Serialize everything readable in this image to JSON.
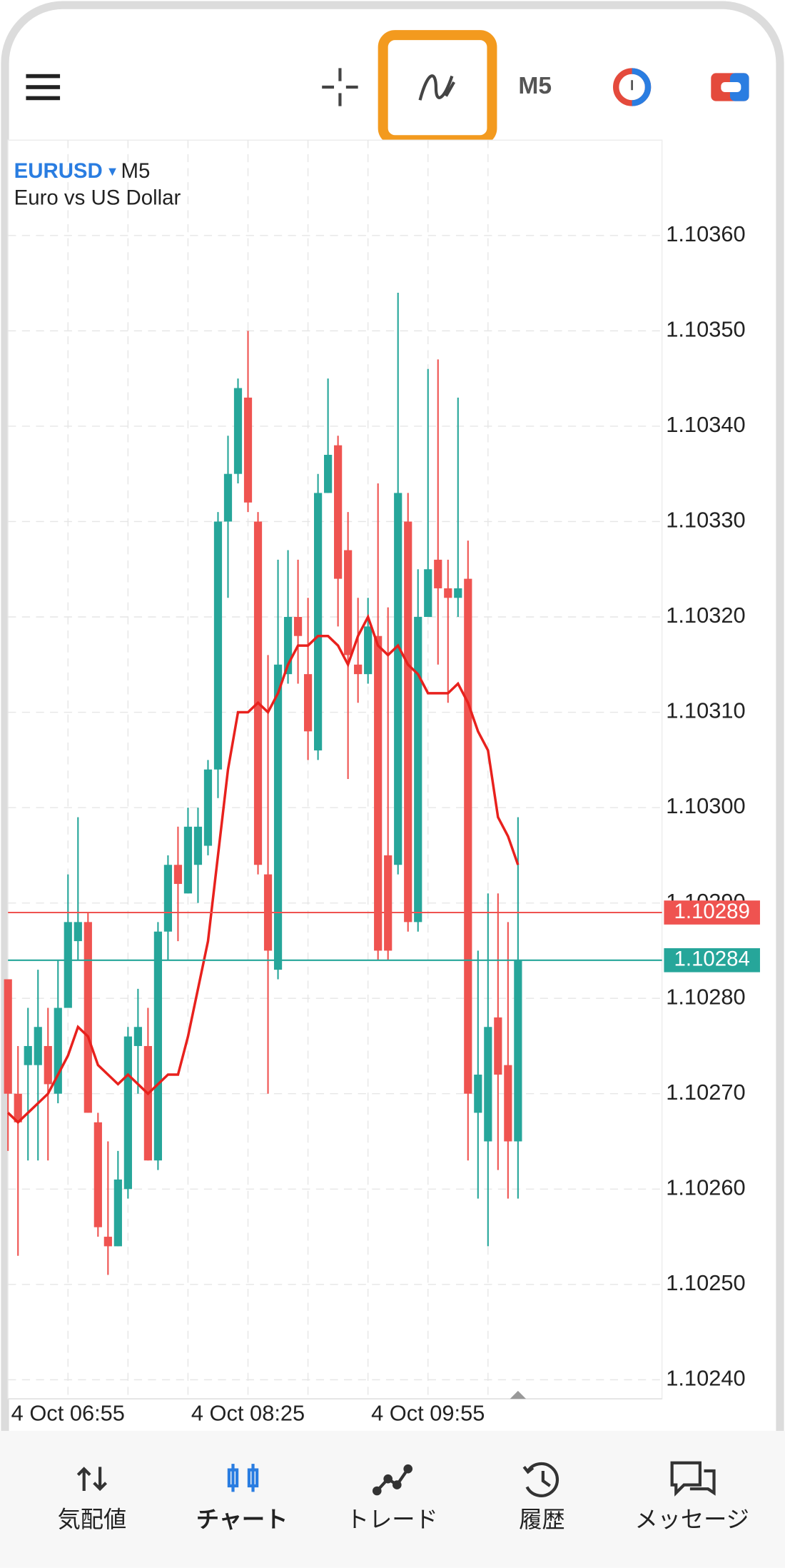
{
  "toolbar": {
    "timeframe": "M5"
  },
  "chart_data": {
    "type": "candlestick",
    "symbol": "EURUSD",
    "timeframe": "M5",
    "description": "Euro vs US Dollar",
    "categories": [
      null,
      null,
      null,
      null,
      null,
      null,
      "4 Oct 06:55",
      null,
      null,
      null,
      null,
      null,
      null,
      null,
      null,
      null,
      null,
      null,
      null,
      null,
      null,
      null,
      null,
      null,
      "4 Oct 08:25",
      null,
      null,
      null,
      null,
      null,
      null,
      null,
      null,
      null,
      null,
      null,
      null,
      null,
      null,
      null,
      null,
      null,
      "4 Oct 09:55",
      null,
      null,
      null,
      null,
      null,
      null,
      null,
      null,
      null
    ],
    "open": [
      1.10282,
      1.1027,
      1.10273,
      1.10273,
      1.10275,
      1.1027,
      1.10279,
      1.10286,
      1.10288,
      1.10267,
      1.10255,
      1.10254,
      1.1026,
      1.10275,
      1.10275,
      1.10263,
      1.10287,
      1.10294,
      1.10291,
      1.10294,
      1.10296,
      1.10304,
      1.1033,
      1.10335,
      1.10343,
      1.1033,
      1.10293,
      1.10283,
      1.10314,
      1.1032,
      1.10314,
      1.10306,
      1.10333,
      1.10338,
      1.10327,
      1.10315,
      1.10314,
      1.10318,
      1.10295,
      1.10294,
      1.1033,
      1.10288,
      1.1032,
      1.10326,
      1.10323,
      1.10322,
      1.10324,
      1.10268,
      1.10265,
      1.10278,
      1.10273,
      1.10265
    ],
    "high": [
      1.10282,
      1.10275,
      1.10279,
      1.10283,
      1.10279,
      1.10284,
      1.10293,
      1.10299,
      1.10289,
      1.10268,
      1.10265,
      1.10264,
      1.10277,
      1.10281,
      1.10279,
      1.10288,
      1.10295,
      1.10298,
      1.103,
      1.103,
      1.10305,
      1.10331,
      1.10339,
      1.10345,
      1.1035,
      1.10331,
      1.10316,
      1.10326,
      1.10327,
      1.10326,
      1.10322,
      1.10335,
      1.10345,
      1.10339,
      1.10331,
      1.10322,
      1.10322,
      1.10334,
      1.10321,
      1.10354,
      1.10333,
      1.10325,
      1.10346,
      1.10347,
      1.10326,
      1.10343,
      1.10328,
      1.10285,
      1.10291,
      1.10291,
      1.10288,
      1.10299
    ],
    "low": [
      1.10264,
      1.10253,
      1.10263,
      1.10263,
      1.10263,
      1.10269,
      1.10279,
      1.10284,
      1.10268,
      1.10255,
      1.10251,
      1.10254,
      1.10259,
      1.1027,
      1.10263,
      1.10262,
      1.10284,
      1.10286,
      1.10291,
      1.1029,
      1.10295,
      1.10301,
      1.10322,
      1.10334,
      1.10331,
      1.10293,
      1.1027,
      1.10282,
      1.10313,
      1.10313,
      1.10305,
      1.10305,
      1.10333,
      1.10319,
      1.10303,
      1.10311,
      1.10313,
      1.10284,
      1.10284,
      1.10293,
      1.10287,
      1.10287,
      1.1032,
      1.10315,
      1.10311,
      1.1032,
      1.10263,
      1.10259,
      1.10254,
      1.10262,
      1.10259,
      1.10259
    ],
    "close": [
      1.1027,
      1.10267,
      1.10275,
      1.10277,
      1.10271,
      1.10279,
      1.10288,
      1.10288,
      1.10268,
      1.10256,
      1.10254,
      1.10261,
      1.10276,
      1.10277,
      1.10263,
      1.10287,
      1.10294,
      1.10292,
      1.10298,
      1.10298,
      1.10304,
      1.1033,
      1.10335,
      1.10344,
      1.10332,
      1.10294,
      1.10285,
      1.10315,
      1.1032,
      1.10318,
      1.10308,
      1.10333,
      1.10337,
      1.10324,
      1.10316,
      1.10314,
      1.10319,
      1.10285,
      1.10285,
      1.10333,
      1.10288,
      1.1032,
      1.10325,
      1.10323,
      1.10322,
      1.10323,
      1.1027,
      1.10272,
      1.10277,
      1.10272,
      1.10265,
      1.10284
    ],
    "up_color": "#26a69a",
    "down_color": "#ef5350",
    "moving_average": {
      "color": "#e8211d",
      "values": [
        1.10268,
        1.10267,
        1.10268,
        1.10269,
        1.1027,
        1.10272,
        1.10274,
        1.10277,
        1.10276,
        1.10273,
        1.10272,
        1.10271,
        1.10272,
        1.10271,
        1.1027,
        1.10271,
        1.10272,
        1.10272,
        1.10276,
        1.10281,
        1.10286,
        1.10295,
        1.10304,
        1.1031,
        1.1031,
        1.10311,
        1.1031,
        1.10312,
        1.10315,
        1.10317,
        1.10317,
        1.10318,
        1.10318,
        1.10317,
        1.10315,
        1.10318,
        1.1032,
        1.10317,
        1.10316,
        1.10317,
        1.10315,
        1.10314,
        1.10312,
        1.10312,
        1.10312,
        1.10313,
        1.10311,
        1.10308,
        1.10306,
        1.10299,
        1.10297,
        1.10294
      ]
    },
    "price_lines": [
      {
        "value": 1.10289,
        "color": "#ef5350"
      },
      {
        "value": 1.10284,
        "color": "#26a69a"
      }
    ],
    "ylim": [
      1.10238,
      1.1037
    ],
    "yticks": [
      {
        "value": 1.1024,
        "label": "1.10240"
      },
      {
        "value": 1.1025,
        "label": "1.10250"
      },
      {
        "value": 1.1026,
        "label": "1.10260"
      },
      {
        "value": 1.1027,
        "label": "1.10270"
      },
      {
        "value": 1.1028,
        "label": "1.10280"
      },
      {
        "value": 1.1029,
        "label": "1.10290"
      },
      {
        "value": 1.103,
        "label": "1.10300"
      },
      {
        "value": 1.1031,
        "label": "1.10310"
      },
      {
        "value": 1.1032,
        "label": "1.10320"
      },
      {
        "value": 1.1033,
        "label": "1.10330"
      },
      {
        "value": 1.1034,
        "label": "1.10340"
      },
      {
        "value": 1.1035,
        "label": "1.10350"
      },
      {
        "value": 1.1036,
        "label": "1.10360"
      }
    ],
    "grid": true
  },
  "nav": {
    "tabs": [
      "気配値",
      "チャート",
      "トレード",
      "履歴",
      "メッセージ"
    ],
    "active": 1
  }
}
